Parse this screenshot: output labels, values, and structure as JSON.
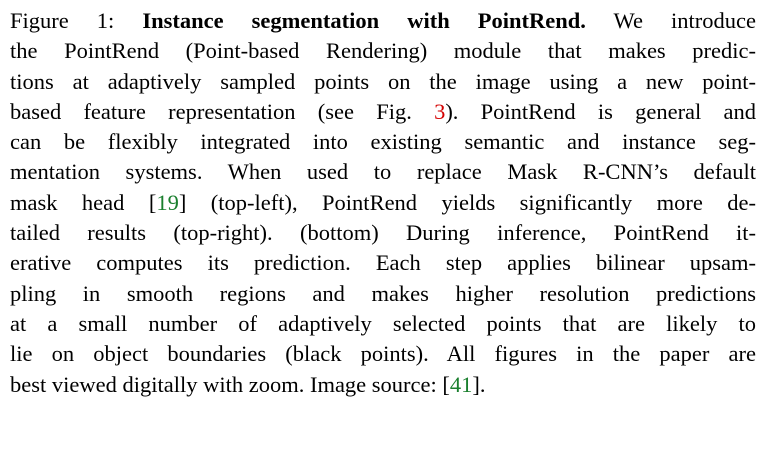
{
  "caption": {
    "line1": {
      "label": "Figure 1: ",
      "title": "Instance segmentation with PointRend.",
      "rest": " We introduce"
    },
    "line2": "the PointRend (Point-based Rendering) module that makes predic-",
    "line3": "tions at adaptively sampled points on the image using a new point-",
    "line4": {
      "before": "based feature representation (see Fig. ",
      "fig_ref": "3",
      "after": "). PointRend is general and"
    },
    "line5": "can be flexibly integrated into existing semantic and instance seg-",
    "line6": "mentation systems. When used to replace Mask R-CNN’s default",
    "line7": {
      "before": "mask head [",
      "cite": "19",
      "after": "] (top-left), PointRend yields significantly more de-"
    },
    "line8": "tailed results (top-right). (bottom) During inference, PointRend it-",
    "line9": "erative computes its prediction. Each step applies bilinear upsam-",
    "line10": "pling in smooth regions and makes higher resolution predictions",
    "line11": "at a small number of adaptively selected points that are likely to",
    "line12": "lie on object boundaries (black points). All figures in the paper are",
    "line13": {
      "before": "best viewed digitally with zoom. Image source: [",
      "cite": "41",
      "after": "]."
    }
  },
  "colors": {
    "citation": "#1a7f2e",
    "figure_reference": "#d40000",
    "text": "#000000"
  }
}
